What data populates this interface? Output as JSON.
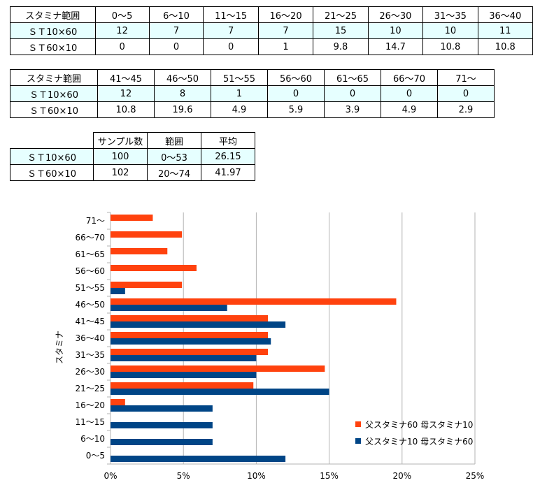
{
  "table1": {
    "header": [
      "スタミナ範囲",
      "0〜5",
      "6〜10",
      "11〜15",
      "16〜20",
      "21〜25",
      "26〜30",
      "31〜35",
      "36〜40"
    ],
    "rows": [
      [
        "ＳＴ10×60",
        "12",
        "7",
        "7",
        "7",
        "15",
        "10",
        "10",
        "11"
      ],
      [
        "ＳＴ60×10",
        "0",
        "0",
        "0",
        "1",
        "9.8",
        "14.7",
        "10.8",
        "10.8"
      ]
    ]
  },
  "table2": {
    "header": [
      "スタミナ範囲",
      "41〜45",
      "46〜50",
      "51〜55",
      "56〜60",
      "61〜65",
      "66〜70",
      "71〜"
    ],
    "rows": [
      [
        "ＳＴ10×60",
        "12",
        "8",
        "1",
        "0",
        "0",
        "0",
        "0"
      ],
      [
        "ＳＴ60×10",
        "10.8",
        "19.6",
        "4.9",
        "5.9",
        "3.9",
        "4.9",
        "2.9"
      ]
    ]
  },
  "table3": {
    "header": [
      "",
      "サンプル数",
      "範囲",
      "平均"
    ],
    "rows": [
      [
        "ＳＴ10×60",
        "100",
        "0〜53",
        "26.15"
      ],
      [
        "ＳＴ60×10",
        "102",
        "20〜74",
        "41.97"
      ]
    ]
  },
  "chart_data": {
    "type": "bar",
    "orientation": "horizontal",
    "ylabel": "スタミナ",
    "categories": [
      "0～5",
      "6～10",
      "11～15",
      "16～20",
      "21～25",
      "26～30",
      "31～35",
      "36～40",
      "41～45",
      "46～50",
      "51～55",
      "56～60",
      "61～65",
      "66～70",
      "71～"
    ],
    "series": [
      {
        "name": "父スタミナ60 母スタミナ10",
        "color": "#ff420e",
        "values": [
          0,
          0,
          0,
          1,
          9.8,
          14.7,
          10.8,
          10.8,
          10.8,
          19.6,
          4.9,
          5.9,
          3.9,
          4.9,
          2.9
        ]
      },
      {
        "name": "父スタミナ10 母スタミナ60",
        "color": "#004586",
        "values": [
          12,
          7,
          7,
          7,
          15,
          10,
          10,
          11,
          12,
          8,
          1,
          0,
          0,
          0,
          0
        ]
      }
    ],
    "xlim": [
      0,
      25
    ],
    "xticks": [
      "0%",
      "5%",
      "10%",
      "15%",
      "20%",
      "25%"
    ],
    "grid": true,
    "legend_position": "bottom-right"
  }
}
